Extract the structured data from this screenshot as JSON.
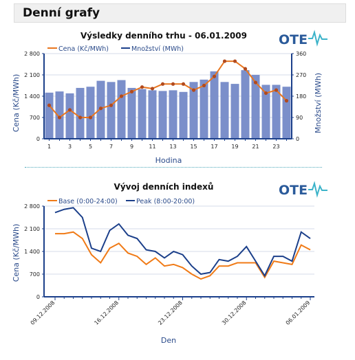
{
  "page": {
    "title": "Denní grafy"
  },
  "logos": [
    {
      "text": "OTE",
      "icon": "pulse-wave-icon"
    },
    {
      "text": "OTE",
      "icon": "pulse-wave-icon"
    }
  ],
  "colors": {
    "price": "#e8761f",
    "price_marker": "#b24a1e",
    "volume_bar": "#7b8fca",
    "peak": "#1b3f8a",
    "base": "#f07a16",
    "axis": "#1b3f8a",
    "text": "#2a4a8a"
  },
  "chart_data": [
    {
      "type": "bar",
      "title": "Výsledky denního trhu - 06.01.2009",
      "xlabel": "Hodina",
      "ylabel": "Cena (Kč/MWh)",
      "y2label": "Množství (MWh)",
      "x": [
        1,
        2,
        3,
        4,
        5,
        6,
        7,
        8,
        9,
        10,
        11,
        12,
        13,
        14,
        15,
        16,
        17,
        18,
        19,
        20,
        21,
        22,
        23,
        24
      ],
      "xticks": [
        "1",
        "3",
        "5",
        "7",
        "9",
        "11",
        "13",
        "15",
        "17",
        "19",
        "21",
        "23"
      ],
      "ylim": [
        0,
        2800
      ],
      "yticks": [
        "0",
        "700",
        "1 400",
        "2 100",
        "2 800"
      ],
      "y2lim": [
        0,
        360
      ],
      "y2ticks": [
        "0",
        "90",
        "180",
        "270",
        "360"
      ],
      "legend_position": "top-left",
      "series": [
        {
          "name": "Cena (Kč/MWh)",
          "type": "line",
          "axis": "left",
          "values": [
            1100,
            700,
            950,
            700,
            700,
            1000,
            1100,
            1400,
            1550,
            1700,
            1650,
            1800,
            1800,
            1800,
            1600,
            1750,
            2050,
            2550,
            2550,
            2300,
            1850,
            1500,
            1600,
            1250
          ]
        },
        {
          "name": "Množství (MWh)",
          "type": "bar",
          "axis": "right",
          "values": [
            195,
            200,
            192,
            215,
            220,
            245,
            240,
            248,
            215,
            210,
            205,
            202,
            205,
            198,
            240,
            250,
            285,
            240,
            232,
            290,
            270,
            228,
            228,
            220
          ]
        }
      ]
    },
    {
      "type": "line",
      "title": "Vývoj denních indexů",
      "xlabel": "Den",
      "ylabel": "Cena (Kč/MWh)",
      "x": [
        "09.12.2008",
        "10.12.2008",
        "11.12.2008",
        "12.12.2008",
        "13.12.2008",
        "14.12.2008",
        "15.12.2008",
        "16.12.2008",
        "17.12.2008",
        "18.12.2008",
        "19.12.2008",
        "20.12.2008",
        "21.12.2008",
        "22.12.2008",
        "23.12.2008",
        "24.12.2008",
        "25.12.2008",
        "26.12.2008",
        "27.12.2008",
        "28.12.2008",
        "29.12.2008",
        "30.12.2008",
        "31.12.2008",
        "01.01.2009",
        "02.01.2009",
        "03.01.2009",
        "04.01.2009",
        "05.01.2009",
        "06.01.2009"
      ],
      "xticks": [
        "09.12.2008",
        "16.12.2008",
        "23.12.2008",
        "30.12.2008",
        "06.01.2009"
      ],
      "ylim": [
        0,
        2800
      ],
      "yticks": [
        "0",
        "700",
        "1 400",
        "2 100",
        "2 800"
      ],
      "legend_position": "top-left",
      "series": [
        {
          "name": "Base (0:00-24:00)",
          "values": [
            1950,
            1950,
            2000,
            1800,
            1300,
            1050,
            1500,
            1650,
            1350,
            1250,
            1000,
            1200,
            950,
            1000,
            900,
            700,
            550,
            650,
            950,
            950,
            1050,
            1050,
            1050,
            600,
            1100,
            1050,
            1000,
            1600,
            1450
          ]
        },
        {
          "name": "Peak (8:00-20:00)",
          "values": [
            2600,
            2700,
            2750,
            2450,
            1500,
            1400,
            2050,
            2250,
            1900,
            1800,
            1450,
            1400,
            1200,
            1400,
            1300,
            950,
            700,
            750,
            1150,
            1100,
            1250,
            1550,
            1100,
            650,
            1250,
            1250,
            1100,
            2000,
            1800
          ]
        }
      ]
    }
  ]
}
